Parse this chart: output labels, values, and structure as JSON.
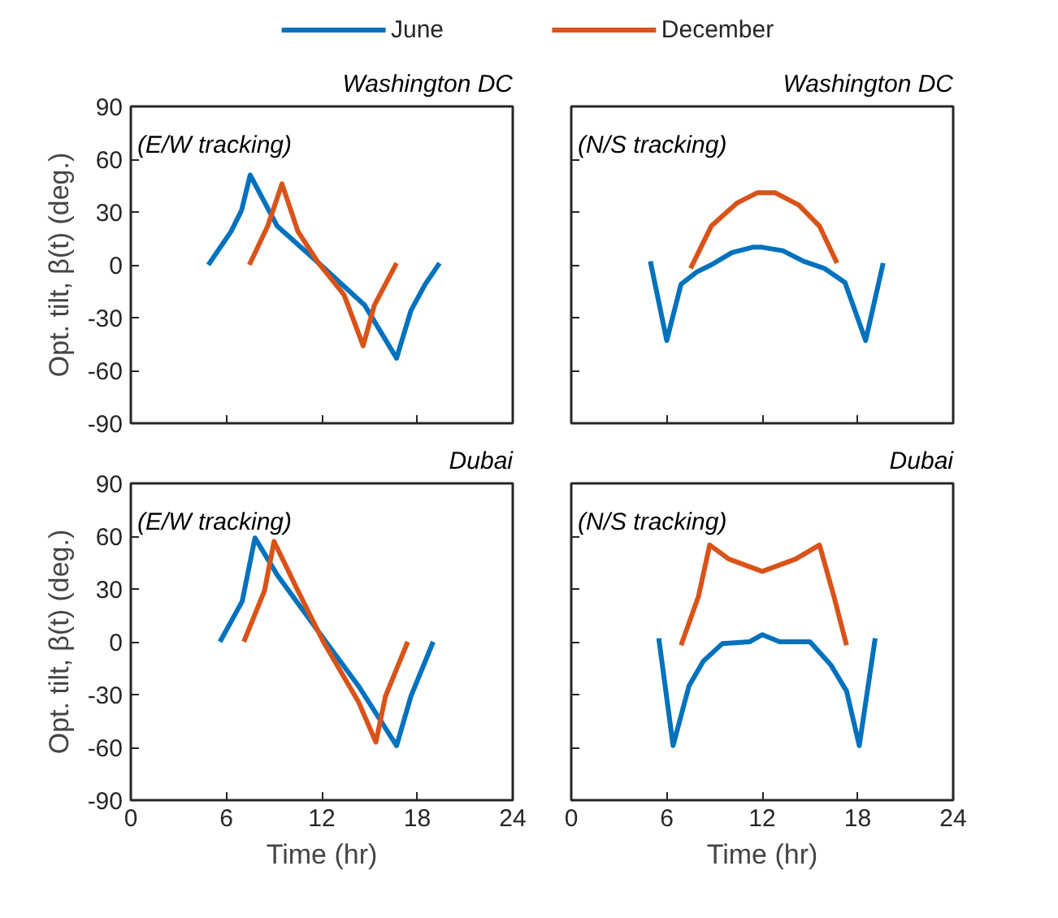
{
  "chart_data": [
    {
      "type": "line",
      "title": "Washington DC",
      "ylabel": "Opt. tilt, β(t) (deg.)",
      "annotations": [
        "(E/W tracking)"
      ],
      "xlim": [
        0,
        24
      ],
      "xticks": [
        0,
        6,
        12,
        18,
        24
      ],
      "ylim": [
        -90,
        90
      ],
      "yticks": [
        -90,
        -60,
        -30,
        0,
        30,
        60,
        90
      ],
      "tick_labels": "y",
      "legend": "top",
      "series": [
        {
          "name": "June",
          "color": "#0072bd",
          "x": [
            4.87,
            6.3,
            6.96,
            7.5,
            9.2,
            11.8,
            14.7,
            16.7,
            17.6,
            18.5,
            19.4
          ],
          "values": [
            0,
            19,
            31,
            51,
            22,
            1,
            -23,
            -53,
            -26,
            -11,
            1
          ]
        },
        {
          "name": "December",
          "color": "#d95319",
          "x": [
            7.45,
            8.6,
            9.5,
            10.5,
            11.8,
            13.4,
            14.6,
            15.3,
            16.7
          ],
          "values": [
            0,
            22,
            46,
            19,
            1,
            -17,
            -46,
            -23,
            1
          ]
        }
      ]
    },
    {
      "type": "line",
      "title": "Washington DC",
      "annotations": [
        "(N/S tracking)"
      ],
      "xlim": [
        0,
        24
      ],
      "xticks": [
        0,
        6,
        12,
        18,
        24
      ],
      "ylim": [
        -90,
        90
      ],
      "yticks": [
        -90,
        -60,
        -30,
        0,
        30,
        60,
        90
      ],
      "tick_labels": false,
      "series": [
        {
          "color": "#0072bd",
          "x": [
            4.97,
            6,
            6.9,
            7.9,
            8.8,
            10.1,
            11.4,
            12,
            13.3,
            14.6,
            15.9,
            17.2,
            18.5,
            19.6
          ],
          "values": [
            2,
            -43,
            -11,
            -4,
            0,
            7,
            10,
            10,
            8,
            2,
            -2,
            -10,
            -43,
            1
          ]
        },
        {
          "color": "#d95319",
          "x": [
            7.5,
            8.8,
            10.4,
            11.7,
            12.8,
            14.3,
            15.6,
            16.7
          ],
          "values": [
            -2,
            22,
            35,
            41,
            41,
            34,
            22,
            1
          ]
        }
      ]
    },
    {
      "type": "line",
      "title": "Dubai",
      "ylabel": "Opt. tilt, β(t) (deg.)",
      "xlabel": "Time (hr)",
      "annotations": [
        "(E/W tracking)"
      ],
      "xlim": [
        0,
        24
      ],
      "xticks": [
        0,
        6,
        12,
        18,
        24
      ],
      "ylim": [
        -90,
        90
      ],
      "yticks": [
        -90,
        -60,
        -30,
        0,
        30,
        60,
        90
      ],
      "series": [
        {
          "color": "#0072bd",
          "x": [
            5.6,
            7.0,
            7.8,
            9.2,
            12.1,
            14.3,
            16.7,
            17.6,
            19.0
          ],
          "values": [
            0,
            23,
            59,
            38,
            2,
            -25,
            -59,
            -31,
            0
          ]
        },
        {
          "color": "#d95319",
          "x": [
            7.1,
            8.4,
            9.0,
            10.5,
            12.1,
            14.3,
            15.4,
            16.0,
            17.4
          ],
          "values": [
            0,
            29,
            57,
            29,
            0,
            -34,
            -57,
            -31,
            0
          ]
        }
      ]
    },
    {
      "type": "line",
      "title": "Dubai",
      "xlabel": "Time (hr)",
      "annotations": [
        "(N/S tracking)"
      ],
      "xlim": [
        0,
        24
      ],
      "xticks": [
        0,
        6,
        12,
        18,
        24
      ],
      "ylim": [
        -90,
        90
      ],
      "yticks": [
        -90,
        -60,
        -30,
        0,
        30,
        60,
        90
      ],
      "tick_labels": "x",
      "series": [
        {
          "color": "#0072bd",
          "x": [
            5.5,
            6.4,
            7.4,
            8.3,
            9.5,
            11.2,
            12,
            13.1,
            15,
            16.3,
            17.3,
            18.1,
            19.1
          ],
          "values": [
            2,
            -59,
            -25,
            -11,
            -1,
            0,
            4,
            0,
            0,
            -13,
            -28,
            -59,
            2
          ]
        },
        {
          "color": "#d95319",
          "x": [
            6.9,
            8.0,
            8.7,
            9.9,
            12,
            14.1,
            15.6,
            16.5,
            17.3
          ],
          "values": [
            -2,
            26,
            55,
            47,
            40,
            47,
            55,
            26,
            -2
          ]
        }
      ]
    }
  ]
}
